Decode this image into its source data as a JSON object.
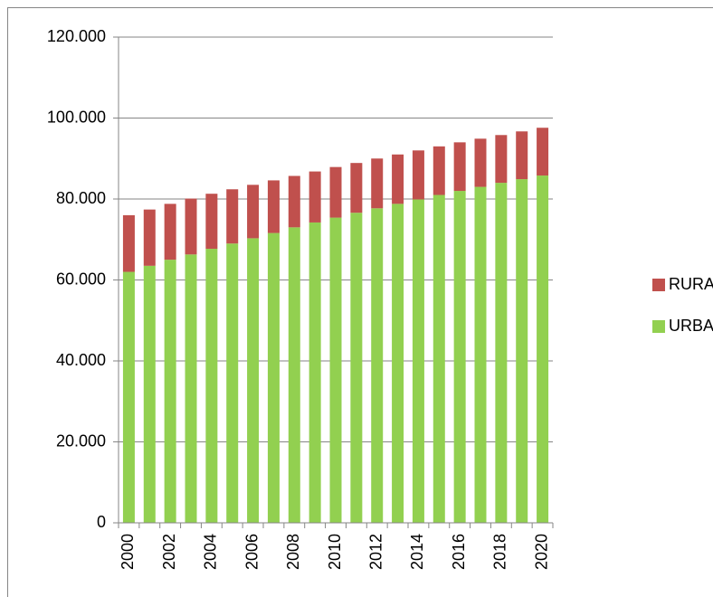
{
  "chart_data": {
    "type": "stacked_bar",
    "categories": [
      "2000",
      null,
      "2002",
      null,
      "2004",
      null,
      "2006",
      null,
      "2008",
      null,
      "2010",
      null,
      "2012",
      null,
      "2014",
      null,
      "2016",
      null,
      "2018",
      null,
      "2020"
    ],
    "series": [
      {
        "name": "URBANO",
        "color": "#92d050",
        "values": [
          62000,
          63500,
          65000,
          66300,
          67700,
          69000,
          70300,
          71600,
          73000,
          74200,
          75400,
          76600,
          77700,
          78800,
          79900,
          81000,
          82000,
          83000,
          84000,
          84900,
          85800
        ]
      },
      {
        "name": "RURAL",
        "color": "#c0504d",
        "values": [
          14000,
          13900,
          13800,
          13800,
          13600,
          13400,
          13200,
          13000,
          12700,
          12600,
          12500,
          12300,
          12300,
          12200,
          12100,
          12000,
          12000,
          11900,
          11800,
          11800,
          11800
        ]
      }
    ],
    "ylim": [
      0,
      120000
    ],
    "yticks": [
      0,
      {
        "value": 20000,
        "label": "20.000"
      },
      {
        "value": 40000,
        "label": "40.000"
      },
      {
        "value": 60000,
        "label": "60.000"
      },
      {
        "value": 80000,
        "label": "80.000"
      },
      {
        "value": 100000,
        "label": "100.000"
      },
      {
        "value": 120000,
        "label": "120.000"
      }
    ],
    "grid": true,
    "legend": "right"
  }
}
